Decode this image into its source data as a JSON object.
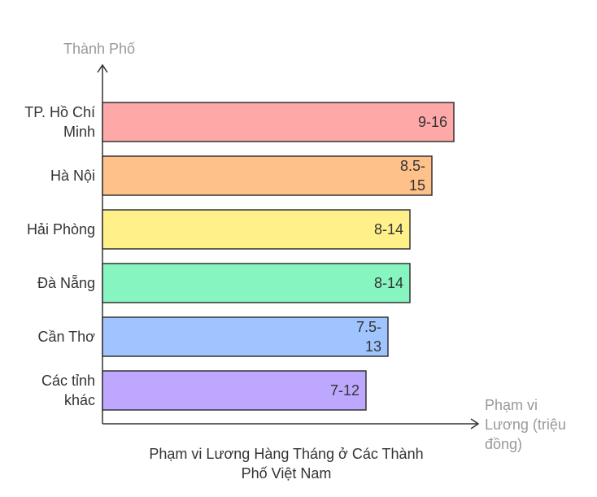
{
  "chart_data": {
    "type": "bar",
    "orientation": "horizontal",
    "title": "Phạm vi Lương Hàng Tháng ở Các Thành Phố Việt Nam",
    "title_lines": [
      "Phạm vi Lương Hàng Tháng ở Các Thành",
      "Phố Việt Nam"
    ],
    "ylabel": "Thành Phố",
    "xlabel": "Phạm vi Lương (triệu đồng)",
    "xlabel_lines": [
      "Phạm vi",
      "Lương (triệu",
      "đồng)"
    ],
    "categories": [
      "TP. Hồ Chí Minh",
      "Hà Nội",
      "Hải Phòng",
      "Đà Nẵng",
      "Cần Thơ",
      "Các tỉnh khác"
    ],
    "category_lines": [
      [
        "TP. Hồ Chí",
        "Minh"
      ],
      [
        "Hà Nội"
      ],
      [
        "Hải Phòng"
      ],
      [
        "Đà Nẵng"
      ],
      [
        "Cần Thơ"
      ],
      [
        "Các tỉnh",
        "khác"
      ]
    ],
    "values": [
      16,
      15,
      14,
      14,
      13,
      12
    ],
    "labels": [
      "9-16",
      "8.5-15",
      "8-14",
      "8-14",
      "7.5-13",
      "7-12"
    ],
    "label_lines": [
      [
        "9-16"
      ],
      [
        "8.5-",
        "15"
      ],
      [
        "8-14"
      ],
      [
        "8-14"
      ],
      [
        "7.5-",
        "13"
      ],
      [
        "7-12"
      ]
    ],
    "colors": [
      "#FFA8A8",
      "#FFC18A",
      "#FFF08A",
      "#86F5C0",
      "#A0C4FF",
      "#BEA8FF"
    ],
    "xlim": [
      0,
      16
    ],
    "grid": false,
    "legend": "none"
  }
}
